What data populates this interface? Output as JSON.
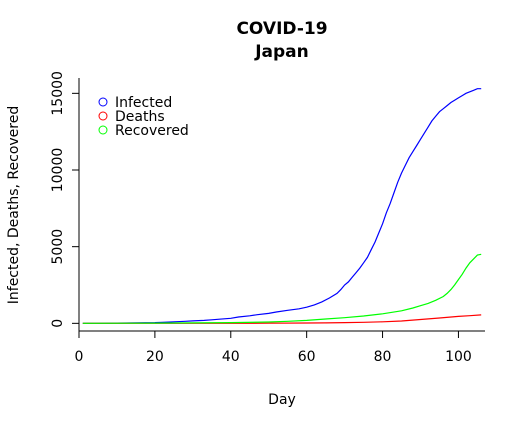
{
  "chart_data": {
    "type": "line",
    "title": "COVID-19",
    "subtitle": "Japan",
    "xlabel": "Day",
    "ylabel": "Infected, Deaths, Recovered",
    "xlim": [
      0,
      107
    ],
    "ylim": [
      -500,
      16000
    ],
    "xticks": [
      0,
      20,
      40,
      60,
      80,
      100
    ],
    "yticks": [
      0,
      5000,
      10000,
      15000
    ],
    "grid": false,
    "legend_position": "top-left",
    "series": [
      {
        "name": "Infected",
        "color": "#0000ff",
        "x": [
          1,
          5,
          10,
          15,
          20,
          22,
          25,
          28,
          30,
          33,
          35,
          37,
          40,
          42,
          45,
          47,
          50,
          52,
          55,
          58,
          60,
          62,
          64,
          66,
          68,
          69,
          70,
          71,
          72,
          73,
          74,
          75,
          76,
          77,
          78,
          79,
          80,
          81,
          82,
          83,
          84,
          85,
          86,
          87,
          88,
          89,
          90,
          91,
          92,
          93,
          94,
          95,
          96,
          97,
          98,
          99,
          100,
          101,
          102,
          103,
          104,
          105,
          106
        ],
        "values": [
          1,
          5,
          15,
          30,
          50,
          65,
          100,
          130,
          160,
          190,
          230,
          270,
          330,
          410,
          490,
          560,
          650,
          740,
          850,
          950,
          1050,
          1200,
          1400,
          1650,
          1950,
          2200,
          2500,
          2700,
          3000,
          3300,
          3600,
          3950,
          4300,
          4800,
          5300,
          5900,
          6500,
          7200,
          7800,
          8500,
          9200,
          9800,
          10300,
          10800,
          11200,
          11600,
          12000,
          12400,
          12800,
          13200,
          13500,
          13800,
          14000,
          14200,
          14400,
          14550,
          14700,
          14850,
          15000,
          15100,
          15200,
          15300,
          15300
        ]
      },
      {
        "name": "Deaths",
        "color": "#ff0000",
        "x": [
          1,
          20,
          30,
          40,
          50,
          60,
          65,
          70,
          75,
          80,
          85,
          90,
          95,
          100,
          103,
          106
        ],
        "values": [
          0,
          1,
          2,
          5,
          10,
          20,
          30,
          45,
          70,
          100,
          150,
          250,
          350,
          450,
          500,
          550
        ]
      },
      {
        "name": "Recovered",
        "color": "#00ff00",
        "x": [
          1,
          20,
          30,
          40,
          50,
          55,
          60,
          65,
          70,
          75,
          80,
          85,
          88,
          90,
          92,
          94,
          96,
          97,
          98,
          99,
          100,
          101,
          102,
          103,
          104,
          105,
          106
        ],
        "values": [
          0,
          15,
          25,
          50,
          90,
          130,
          190,
          280,
          370,
          480,
          620,
          820,
          1000,
          1150,
          1300,
          1500,
          1750,
          1950,
          2200,
          2500,
          2850,
          3200,
          3600,
          3950,
          4200,
          4450,
          4500
        ]
      }
    ]
  }
}
